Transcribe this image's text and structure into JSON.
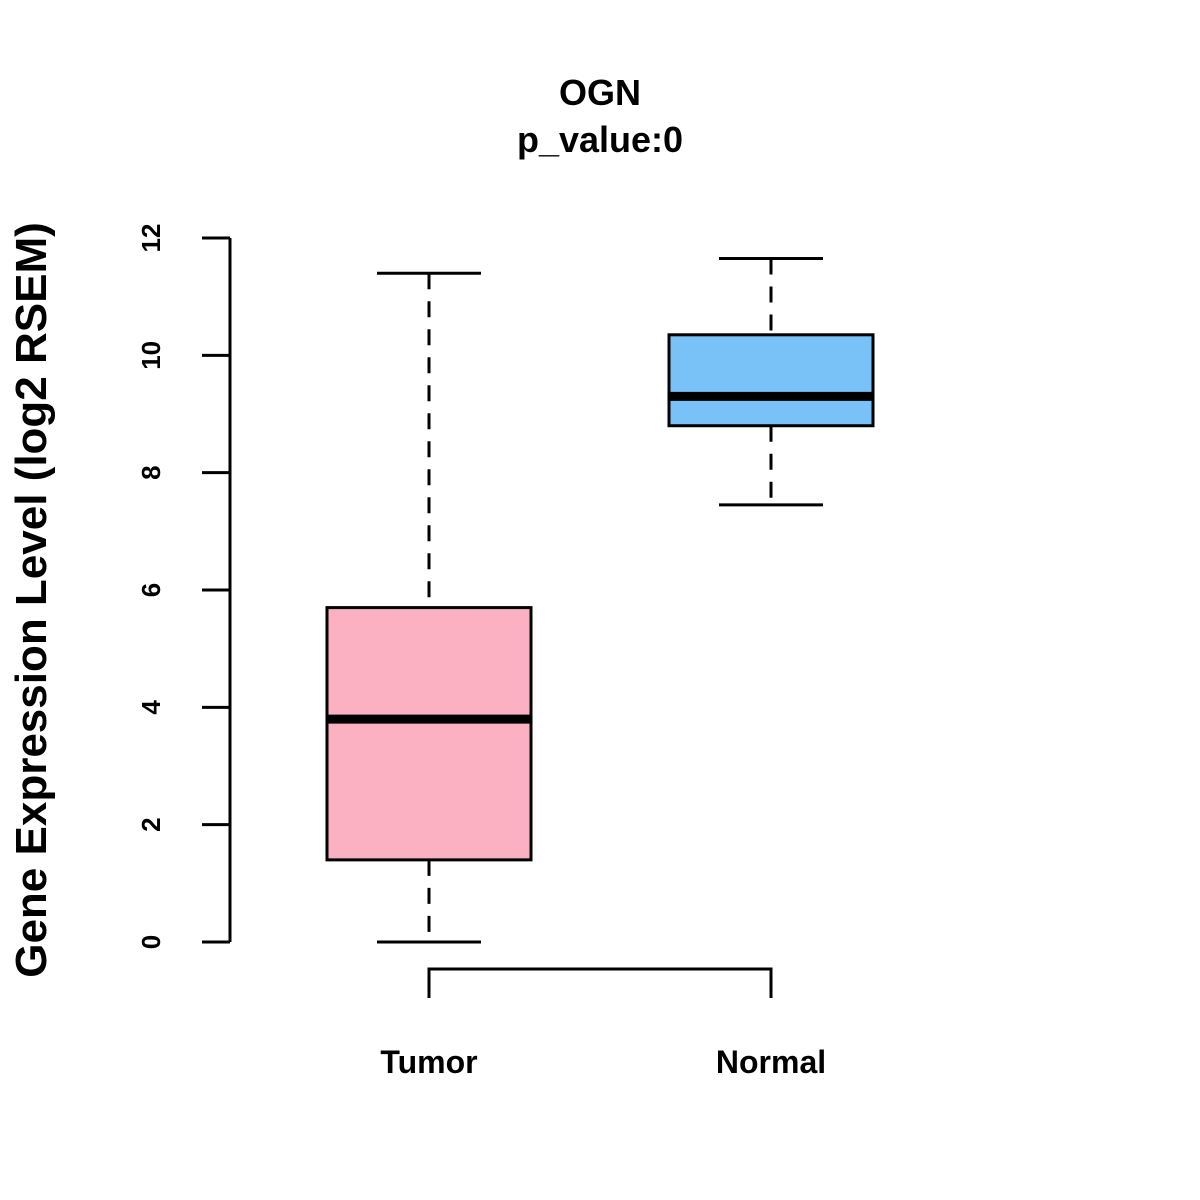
{
  "chart_data": {
    "type": "boxplot",
    "title": "OGN",
    "subtitle": "p_value:0",
    "ylabel": "Gene Expression Level (log2 RSEM)",
    "xlabel": "",
    "ylim": [
      0,
      12
    ],
    "yticks": [
      0,
      2,
      4,
      6,
      8,
      10,
      12
    ],
    "grid": false,
    "categories": [
      "Tumor",
      "Normal"
    ],
    "boxes": [
      {
        "name": "Tumor",
        "min": 0.0,
        "q1": 1.4,
        "median": 3.8,
        "q3": 5.7,
        "max": 11.4,
        "color": "#FBB1C2"
      },
      {
        "name": "Normal",
        "min": 7.45,
        "q1": 8.8,
        "median": 9.3,
        "q3": 10.35,
        "max": 11.65,
        "color": "#78C2F8"
      }
    ],
    "comparison_bracket": [
      "Tumor",
      "Normal"
    ]
  }
}
